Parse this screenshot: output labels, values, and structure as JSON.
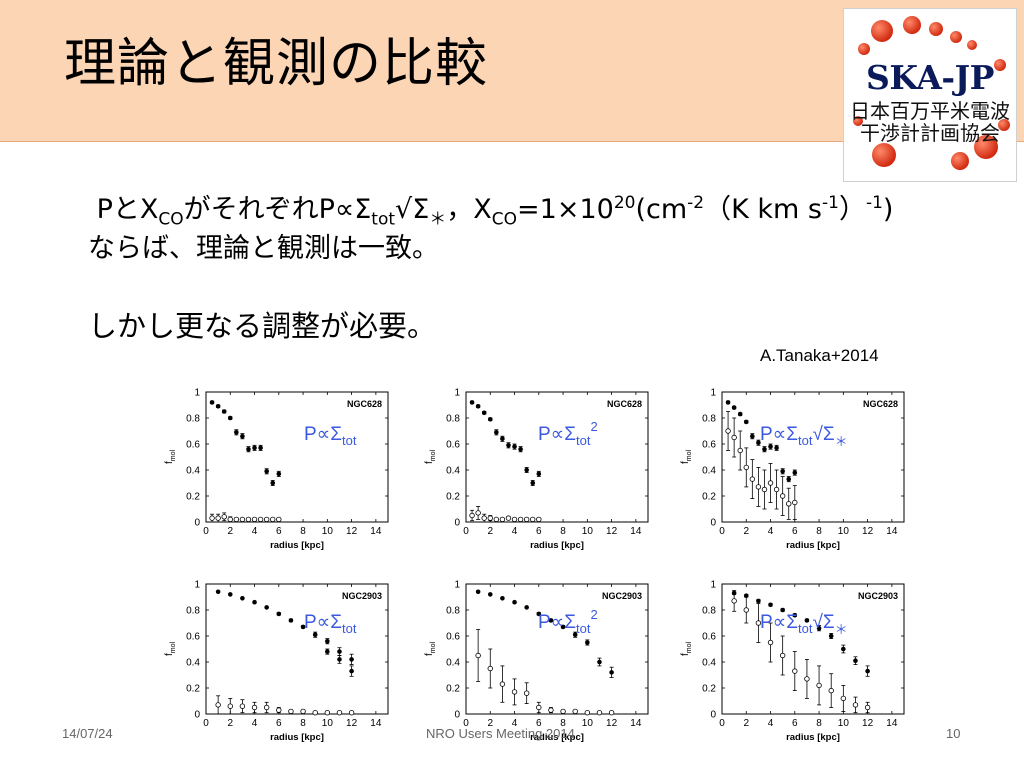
{
  "slide": {
    "title": "理論と観測の比較",
    "logo": {
      "main": "SKA-JP",
      "line1": "日本百万平米電波",
      "line2": "干渉計計画協会"
    },
    "body": {
      "line2": "しかし更なる調整が必要。"
    },
    "citation": "A.Tanaka+2014",
    "footer": {
      "date": "14/07/24",
      "center": "NRO Users Meeting 2014",
      "page": "10"
    }
  },
  "chart_data": [
    {
      "type": "scatter",
      "galaxy": "NGC628",
      "label": "P∝Σtot",
      "xlabel": "radius [kpc]",
      "ylabel": "fmol",
      "xlim": [
        0,
        15
      ],
      "ylim": [
        0,
        1
      ],
      "xticks": [
        0,
        2,
        4,
        6,
        8,
        10,
        12,
        14
      ],
      "yticks": [
        0,
        0.2,
        0.4,
        0.6,
        0.8,
        1
      ],
      "series": [
        {
          "marker": "filled",
          "x": [
            0.5,
            1.0,
            1.5,
            2.0,
            2.5,
            3.0,
            3.5,
            4.0,
            4.5,
            5.0,
            5.5,
            6.0
          ],
          "y": [
            0.92,
            0.89,
            0.85,
            0.8,
            0.69,
            0.66,
            0.56,
            0.57,
            0.57,
            0.39,
            0.3,
            0.37
          ],
          "err": [
            0.01,
            0.01,
            0.01,
            0.01,
            0.02,
            0.02,
            0.02,
            0.02,
            0.02,
            0.02,
            0.02,
            0.02
          ]
        },
        {
          "marker": "open",
          "x": [
            0.5,
            1.0,
            1.5,
            2.0,
            2.5,
            3.0,
            3.5,
            4.0,
            4.5,
            5.0,
            5.5,
            6.0
          ],
          "y": [
            0.03,
            0.03,
            0.04,
            0.02,
            0.02,
            0.02,
            0.02,
            0.02,
            0.02,
            0.02,
            0.02,
            0.02
          ],
          "err": [
            0.03,
            0.03,
            0.03,
            0.02,
            0.01,
            0.01,
            0.01,
            0.01,
            0.01,
            0.01,
            0.01,
            0.01
          ]
        }
      ]
    },
    {
      "type": "scatter",
      "galaxy": "NGC628",
      "label": "P∝Σtot2",
      "xlabel": "radius [kpc]",
      "ylabel": "fmol",
      "xlim": [
        0,
        15
      ],
      "ylim": [
        0,
        1
      ],
      "xticks": [
        0,
        2,
        4,
        6,
        8,
        10,
        12,
        14
      ],
      "yticks": [
        0,
        0.2,
        0.4,
        0.6,
        0.8,
        1
      ],
      "series": [
        {
          "marker": "filled",
          "x": [
            0.5,
            1.0,
            1.5,
            2.0,
            2.5,
            3.0,
            3.5,
            4.0,
            4.5,
            5.0,
            5.5,
            6.0
          ],
          "y": [
            0.92,
            0.89,
            0.84,
            0.79,
            0.69,
            0.64,
            0.59,
            0.58,
            0.56,
            0.4,
            0.3,
            0.37
          ],
          "err": [
            0.01,
            0.01,
            0.01,
            0.01,
            0.02,
            0.02,
            0.02,
            0.02,
            0.02,
            0.02,
            0.02,
            0.02
          ]
        },
        {
          "marker": "open",
          "x": [
            0.5,
            1.0,
            1.5,
            2.0,
            2.5,
            3.0,
            3.5,
            4.0,
            4.5,
            5.0,
            5.5,
            6.0
          ],
          "y": [
            0.05,
            0.07,
            0.03,
            0.03,
            0.02,
            0.02,
            0.03,
            0.02,
            0.02,
            0.02,
            0.02,
            0.02
          ],
          "err": [
            0.04,
            0.05,
            0.03,
            0.02,
            0.01,
            0.01,
            0.01,
            0.01,
            0.01,
            0.01,
            0.01,
            0.01
          ]
        }
      ]
    },
    {
      "type": "scatter",
      "galaxy": "NGC628",
      "label": "P∝Σtot√Σ＊",
      "xlabel": "radius [kpc]",
      "ylabel": "fmol",
      "xlim": [
        0,
        15
      ],
      "ylim": [
        0,
        1
      ],
      "xticks": [
        0,
        2,
        4,
        6,
        8,
        10,
        12,
        14
      ],
      "yticks": [
        0,
        0.2,
        0.4,
        0.6,
        0.8,
        1
      ],
      "series": [
        {
          "marker": "filled",
          "x": [
            0.5,
            1.0,
            1.5,
            2.0,
            2.5,
            3.0,
            3.5,
            4.0,
            4.5,
            5.0,
            5.5,
            6.0
          ],
          "y": [
            0.92,
            0.88,
            0.83,
            0.77,
            0.66,
            0.61,
            0.56,
            0.58,
            0.57,
            0.39,
            0.33,
            0.38
          ],
          "err": [
            0.01,
            0.01,
            0.01,
            0.01,
            0.02,
            0.02,
            0.02,
            0.02,
            0.02,
            0.02,
            0.02,
            0.02
          ]
        },
        {
          "marker": "open",
          "x": [
            0.5,
            1.0,
            1.5,
            2.0,
            2.5,
            3.0,
            3.5,
            4.0,
            4.5,
            5.0,
            5.5,
            6.0
          ],
          "y": [
            0.7,
            0.65,
            0.55,
            0.42,
            0.33,
            0.27,
            0.25,
            0.3,
            0.25,
            0.2,
            0.14,
            0.15
          ],
          "err": [
            0.15,
            0.15,
            0.15,
            0.15,
            0.15,
            0.15,
            0.15,
            0.15,
            0.15,
            0.15,
            0.12,
            0.13
          ]
        }
      ]
    },
    {
      "type": "scatter",
      "galaxy": "NGC2903",
      "label": "P∝Σtot",
      "xlabel": "radius [kpc]",
      "ylabel": "fmol",
      "xlim": [
        0,
        15
      ],
      "ylim": [
        0,
        1
      ],
      "xticks": [
        0,
        2,
        4,
        6,
        8,
        10,
        12,
        14
      ],
      "yticks": [
        0,
        0.2,
        0.4,
        0.6,
        0.8,
        1
      ],
      "series": [
        {
          "marker": "filled",
          "x": [
            1,
            2,
            3,
            4,
            5,
            6,
            7,
            8,
            9,
            10,
            11,
            12
          ],
          "y": [
            0.94,
            0.92,
            0.89,
            0.86,
            0.82,
            0.77,
            0.72,
            0.67,
            0.61,
            0.56,
            0.48,
            0.42
          ],
          "err": [
            0.005,
            0.005,
            0.005,
            0.005,
            0.005,
            0.01,
            0.01,
            0.01,
            0.02,
            0.02,
            0.03,
            0.04
          ],
          "note": "leading points shown without error bars"
        },
        {
          "marker": "open",
          "x": [
            1,
            2,
            3,
            4,
            5,
            6,
            7,
            8,
            9,
            10,
            11,
            12
          ],
          "y": [
            0.07,
            0.06,
            0.06,
            0.05,
            0.05,
            0.03,
            0.02,
            0.02,
            0.01,
            0.01,
            0.01,
            0.01
          ],
          "err": [
            0.07,
            0.06,
            0.05,
            0.04,
            0.04,
            0.02,
            0.01,
            0.01,
            0.01,
            0.01,
            0.01,
            0.01
          ]
        },
        {
          "marker": "filled",
          "x": [
            10,
            11,
            12
          ],
          "y": [
            0.48,
            0.42,
            0.33
          ],
          "err": [
            0.02,
            0.03,
            0.04
          ]
        }
      ]
    },
    {
      "type": "scatter",
      "galaxy": "NGC2903",
      "label": "P∝Σtot2",
      "xlabel": "radius [kpc]",
      "ylabel": "fmol",
      "xlim": [
        0,
        15
      ],
      "ylim": [
        0,
        1
      ],
      "xticks": [
        0,
        2,
        4,
        6,
        8,
        10,
        12,
        14
      ],
      "yticks": [
        0,
        0.2,
        0.4,
        0.6,
        0.8,
        1
      ],
      "series": [
        {
          "marker": "filled",
          "x": [
            1,
            2,
            3,
            4,
            5,
            6,
            7,
            8,
            9,
            10,
            11,
            12
          ],
          "y": [
            0.94,
            0.92,
            0.89,
            0.86,
            0.82,
            0.77,
            0.72,
            0.67,
            0.61,
            0.55,
            0.4,
            0.32
          ],
          "err": [
            0.005,
            0.005,
            0.005,
            0.005,
            0.005,
            0.01,
            0.01,
            0.01,
            0.02,
            0.02,
            0.03,
            0.04
          ]
        },
        {
          "marker": "open",
          "x": [
            1,
            2,
            3,
            4,
            5,
            6,
            7,
            8,
            9,
            10,
            11,
            12
          ],
          "y": [
            0.45,
            0.35,
            0.23,
            0.17,
            0.16,
            0.05,
            0.03,
            0.02,
            0.02,
            0.01,
            0.01,
            0.01
          ],
          "err": [
            0.2,
            0.15,
            0.14,
            0.1,
            0.08,
            0.04,
            0.02,
            0.01,
            0.01,
            0.01,
            0.01,
            0.01
          ]
        }
      ]
    },
    {
      "type": "scatter",
      "galaxy": "NGC2903",
      "label": "P∝Σtot√Σ＊",
      "xlabel": "radius [kpc]",
      "ylabel": "fmol",
      "xlim": [
        0,
        15
      ],
      "ylim": [
        0,
        1
      ],
      "xticks": [
        0,
        2,
        4,
        6,
        8,
        10,
        12,
        14
      ],
      "yticks": [
        0,
        0.2,
        0.4,
        0.6,
        0.8,
        1
      ],
      "series": [
        {
          "marker": "filled",
          "x": [
            1,
            2,
            3,
            4,
            5,
            6,
            7,
            8,
            9,
            10,
            11,
            12
          ],
          "y": [
            0.93,
            0.91,
            0.87,
            0.84,
            0.8,
            0.76,
            0.72,
            0.66,
            0.6,
            0.5,
            0.41,
            0.33
          ],
          "err": [
            0.01,
            0.01,
            0.01,
            0.01,
            0.01,
            0.01,
            0.01,
            0.02,
            0.02,
            0.03,
            0.03,
            0.04
          ]
        },
        {
          "marker": "open",
          "x": [
            1,
            2,
            3,
            4,
            5,
            6,
            7,
            8,
            9,
            10,
            11,
            12
          ],
          "y": [
            0.87,
            0.8,
            0.7,
            0.55,
            0.45,
            0.33,
            0.27,
            0.22,
            0.18,
            0.12,
            0.07,
            0.05
          ],
          "err": [
            0.08,
            0.1,
            0.15,
            0.15,
            0.15,
            0.15,
            0.15,
            0.15,
            0.13,
            0.1,
            0.06,
            0.04
          ]
        }
      ]
    }
  ]
}
